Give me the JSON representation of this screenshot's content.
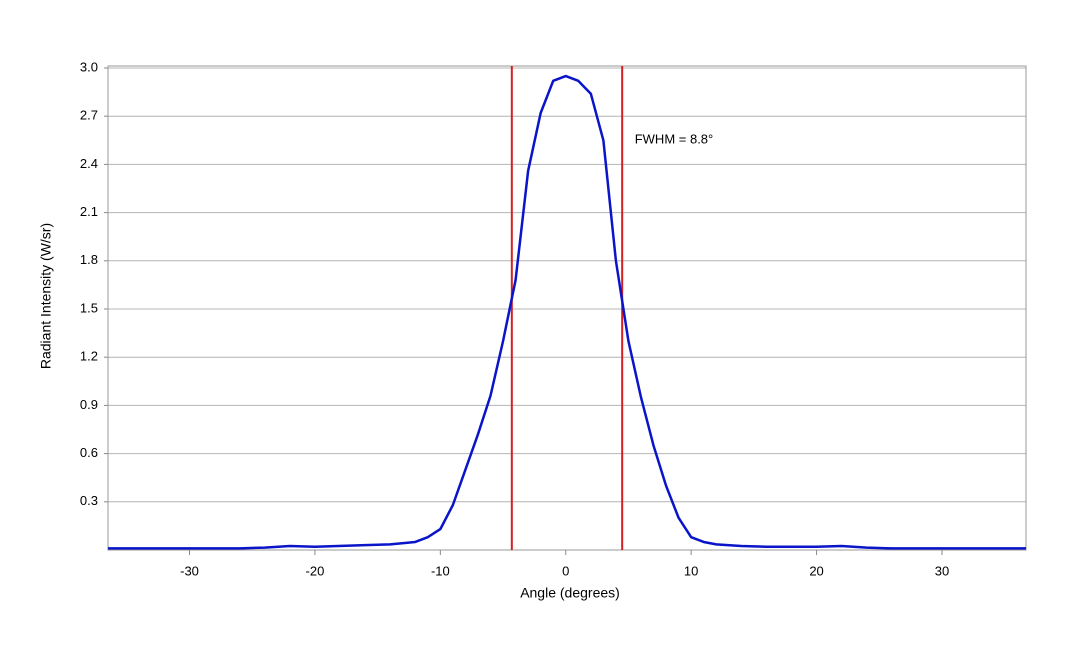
{
  "chart_data": {
    "type": "line",
    "x_label": "Angle (degrees)",
    "y_label": "Radiant Intensity (W/sr)",
    "annotation": "FWHM = 8.8°",
    "annotation_position": [
      5.5,
      2.55
    ],
    "x": [
      -36.5,
      -34,
      -30,
      -26,
      -24,
      -22,
      -20,
      -16,
      -14,
      -12,
      -11,
      -10,
      -9,
      -8,
      -7,
      -6,
      -5,
      -4,
      -3,
      -2,
      -1,
      0,
      1,
      2,
      3,
      4,
      5,
      6,
      7,
      8,
      9,
      10,
      11,
      12,
      14,
      16,
      20,
      22,
      24,
      26,
      30,
      34,
      36.7
    ],
    "series": [
      {
        "color": "#0a14c8",
        "values": [
          0.01,
          0.01,
          0.01,
          0.01,
          0.015,
          0.025,
          0.02,
          0.03,
          0.035,
          0.05,
          0.08,
          0.13,
          0.28,
          0.5,
          0.72,
          0.96,
          1.3,
          1.68,
          2.36,
          2.72,
          2.92,
          2.95,
          2.92,
          2.84,
          2.55,
          1.8,
          1.3,
          0.95,
          0.65,
          0.4,
          0.2,
          0.08,
          0.05,
          0.035,
          0.025,
          0.02,
          0.02,
          0.025,
          0.015,
          0.01,
          0.01,
          0.01,
          0.01
        ]
      }
    ],
    "vlines": {
      "color": "#d42020",
      "values": [
        -4.3,
        4.5
      ]
    },
    "xlim": [
      -36.5,
      36.7
    ],
    "xticks": [
      -30,
      -20,
      -10,
      0,
      10,
      20,
      30
    ],
    "ylim": [
      0,
      3
    ],
    "yticks": [
      0.3,
      0.6,
      0.9,
      1.2,
      1.5,
      1.8,
      2.1,
      2.4,
      2.7,
      {
        "value": 3,
        "label": "3.0"
      }
    ],
    "grid": true
  }
}
